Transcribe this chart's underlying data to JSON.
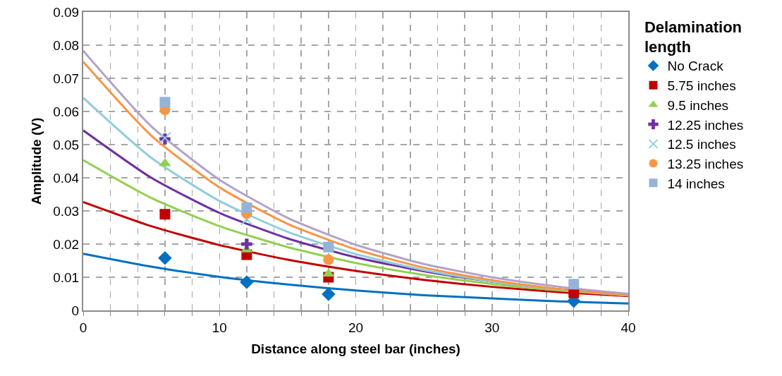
{
  "chart_data": {
    "type": "scatter",
    "xlabel": "Distance along steel bar (inches)",
    "ylabel": "Amplitude (V)",
    "legend_title": "Delamination length",
    "xlim": [
      0,
      40
    ],
    "xticks": [
      0,
      {
        "value": 2,
        "label": null
      },
      {
        "value": 4,
        "label": null
      },
      {
        "value": 6,
        "label": null
      },
      {
        "value": 8,
        "label": null
      },
      10,
      {
        "value": 12,
        "label": null
      },
      {
        "value": 14,
        "label": null
      },
      {
        "value": 16,
        "label": null
      },
      {
        "value": 18,
        "label": null
      },
      20,
      {
        "value": 22,
        "label": null
      },
      {
        "value": 24,
        "label": null
      },
      {
        "value": 26,
        "label": null
      },
      {
        "value": 28,
        "label": null
      },
      30,
      {
        "value": 32,
        "label": null
      },
      {
        "value": 34,
        "label": null
      },
      {
        "value": 36,
        "label": null
      },
      {
        "value": 38,
        "label": null
      },
      40
    ],
    "ylim": [
      0,
      0.09
    ],
    "yticks": [
      0,
      0.01,
      0.02,
      0.03,
      0.04,
      0.05,
      0.06,
      0.07,
      0.08,
      0.09
    ],
    "grid": true,
    "legend": "right",
    "series": [
      {
        "type": "line",
        "color": "#0070c0",
        "x": [
          0,
          5,
          10,
          15,
          20,
          25,
          30,
          35,
          40
        ],
        "values": [
          0.0171,
          0.0132,
          0.0101,
          0.0078,
          0.006,
          0.0046,
          0.0036,
          0.0027,
          0.0021
        ]
      },
      {
        "type": "line",
        "color": "#c00000",
        "x": [
          0,
          5,
          10,
          15,
          20,
          25,
          30,
          35,
          40
        ],
        "values": [
          0.0327,
          0.0254,
          0.0197,
          0.0153,
          0.0119,
          0.0092,
          0.0071,
          0.0055,
          0.0043
        ]
      },
      {
        "type": "line",
        "color": "#92d050",
        "x": [
          0,
          5,
          10,
          15,
          20,
          25,
          30,
          35,
          40
        ],
        "values": [
          0.0453,
          0.0339,
          0.0254,
          0.0191,
          0.0143,
          0.0107,
          0.008,
          0.006,
          0.0045
        ]
      },
      {
        "type": "line",
        "color": "#7030a0",
        "x": [
          0,
          5,
          10,
          15,
          20,
          25,
          30,
          35,
          40
        ],
        "values": [
          0.0543,
          0.04,
          0.0294,
          0.0217,
          0.016,
          0.0118,
          0.0087,
          0.0064,
          0.0047
        ]
      },
      {
        "type": "line",
        "color": "#92cddc",
        "x": [
          0,
          5,
          10,
          15,
          20,
          25,
          30,
          35,
          40
        ],
        "values": [
          0.0641,
          0.046,
          0.033,
          0.0237,
          0.017,
          0.0122,
          0.0087,
          0.0063,
          0.0045
        ]
      },
      {
        "type": "line",
        "color": "#f79646",
        "x": [
          0,
          5,
          10,
          15,
          20,
          25,
          30,
          35,
          40
        ],
        "values": [
          0.075,
          0.0527,
          0.0371,
          0.0261,
          0.0184,
          0.0129,
          0.0091,
          0.0064,
          0.0045
        ]
      },
      {
        "type": "line",
        "color": "#b3a2c7",
        "x": [
          0,
          5,
          10,
          15,
          20,
          25,
          30,
          35,
          40
        ],
        "values": [
          0.0783,
          0.0555,
          0.0394,
          0.0279,
          0.0198,
          0.014,
          0.01,
          0.0071,
          0.005
        ]
      },
      {
        "name": "No Crack",
        "marker": "diamond",
        "color": "#0070c0",
        "x": [
          6,
          12,
          18,
          36
        ],
        "values": [
          0.0158,
          0.0085,
          0.0049,
          0.0028
        ]
      },
      {
        "name": "5.75 inches",
        "marker": "square",
        "color": "#c00000",
        "x": [
          6,
          12,
          18,
          36
        ],
        "values": [
          0.029,
          0.0168,
          0.01,
          0.0053
        ]
      },
      {
        "name": "9.5 inches",
        "marker": "triangle",
        "color": "#92d050",
        "x": [
          6,
          12,
          18
        ],
        "values": [
          0.0443,
          0.0183,
          0.011
        ]
      },
      {
        "name": "12.25 inches",
        "marker": "cross",
        "color": "#7030a0",
        "x": [
          6,
          12
        ],
        "values": [
          0.0517,
          0.02
        ]
      },
      {
        "name": "12.5 inches",
        "marker": "x",
        "color": "#92cddc",
        "x": [
          6,
          12
        ],
        "values": [
          0.052,
          0.0275
        ]
      },
      {
        "name": "13.25 inches",
        "marker": "circle",
        "color": "#f79646",
        "x": [
          6,
          12,
          18
        ],
        "values": [
          0.0605,
          0.0292,
          0.0153
        ]
      },
      {
        "name": "14 inches",
        "marker": "square",
        "color": "#95b3d7",
        "x": [
          6,
          12,
          18,
          36
        ],
        "values": [
          0.0628,
          0.031,
          0.0191,
          0.0079
        ]
      }
    ]
  }
}
